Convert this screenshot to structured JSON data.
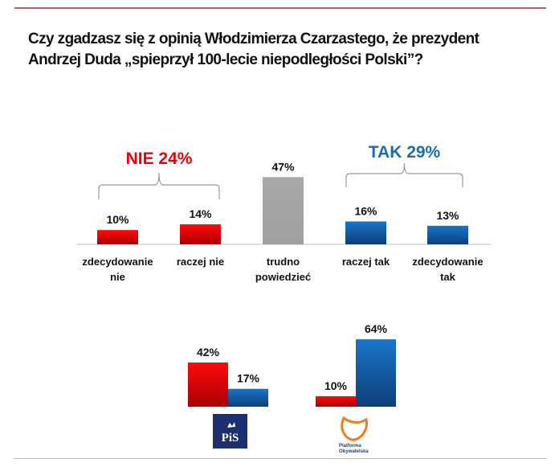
{
  "title_lines": [
    "Czy zgadzasz się z opinią Włodzimierza Czarzastego, że prezydent",
    "Andrzej Duda „spieprzył 100-lecie niepodległości Polski”?"
  ],
  "colors": {
    "red": "#e8000b",
    "blue": "#1168b8",
    "gray": "#a6a6a6",
    "nie_label": "#e8000b",
    "tak_label": "#1a6cb5"
  },
  "chart_data": [
    {
      "type": "bar",
      "categories": [
        [
          "zdecydowanie",
          "nie"
        ],
        [
          "raczej nie"
        ],
        [
          "trudno",
          "powiedzieć"
        ],
        [
          "raczej tak"
        ],
        [
          "zdecydowanie",
          "tak"
        ]
      ],
      "values": [
        10,
        14,
        47,
        16,
        13
      ],
      "data_labels": [
        "10%",
        "14%",
        "47%",
        "16%",
        "13%"
      ],
      "bar_colors": [
        "red",
        "red",
        "gray",
        "blue",
        "blue"
      ],
      "groups": [
        {
          "label": "NIE 24%",
          "members": [
            0,
            1
          ],
          "color": "nie_label"
        },
        {
          "label": "TAK 29%",
          "members": [
            3,
            4
          ],
          "color": "tak_label"
        }
      ]
    },
    {
      "type": "bar",
      "categories": [
        "PiS",
        "Platforma Obywatelska"
      ],
      "series": [
        {
          "color": "red",
          "values": [
            42,
            10
          ],
          "data_labels": [
            "42%",
            "10%"
          ]
        },
        {
          "color": "blue",
          "values": [
            17,
            64
          ],
          "data_labels": [
            "17%",
            "64%"
          ]
        }
      ],
      "category_logos": [
        "PiS logo",
        "Platforma Obywatelska logo"
      ]
    }
  ]
}
